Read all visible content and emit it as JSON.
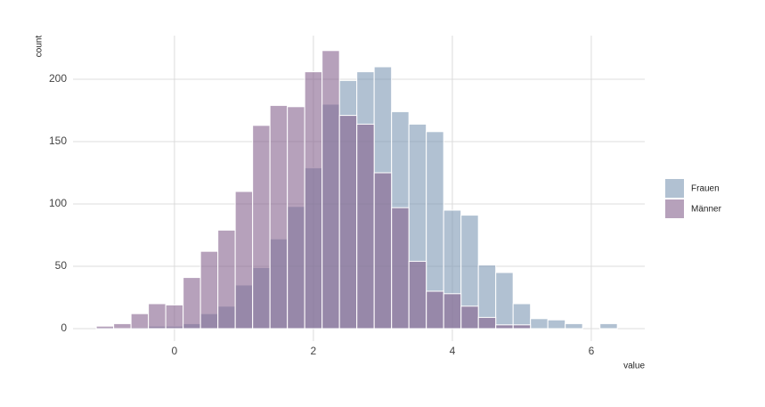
{
  "chart_data": {
    "type": "histogram",
    "xlabel": "value",
    "ylabel": "count",
    "bins": [
      -1.125,
      -0.875,
      -0.625,
      -0.375,
      -0.125,
      0.125,
      0.375,
      0.625,
      0.875,
      1.125,
      1.375,
      1.625,
      1.875,
      2.125,
      2.375,
      2.625,
      2.875,
      3.125,
      3.375,
      3.625,
      3.875,
      4.125,
      4.375,
      4.625,
      4.875,
      5.125,
      5.375,
      5.625,
      5.875,
      6.125,
      6.375
    ],
    "series": [
      {
        "name": "Frauen",
        "color": "#7d97b4",
        "values": [
          1,
          0,
          1,
          2,
          2,
          4,
          12,
          18,
          35,
          49,
          72,
          98,
          129,
          180,
          199,
          206,
          210,
          174,
          164,
          158,
          95,
          91,
          51,
          45,
          20,
          8,
          7,
          4,
          0,
          4
        ]
      },
      {
        "name": "Männer",
        "color": "#85628e",
        "values": [
          2,
          4,
          12,
          20,
          19,
          41,
          62,
          79,
          110,
          163,
          179,
          178,
          206,
          223,
          171,
          164,
          125,
          97,
          54,
          30,
          28,
          18,
          9,
          3,
          3,
          0,
          0,
          0,
          0,
          0
        ]
      }
    ],
    "xlim": [
      -1.46,
      6.77
    ],
    "ylim": [
      -10,
      235
    ],
    "xticks": [
      0,
      2,
      4,
      6
    ],
    "yticks": [
      0,
      50,
      100,
      150,
      200
    ],
    "grid": true,
    "legend": "right"
  }
}
